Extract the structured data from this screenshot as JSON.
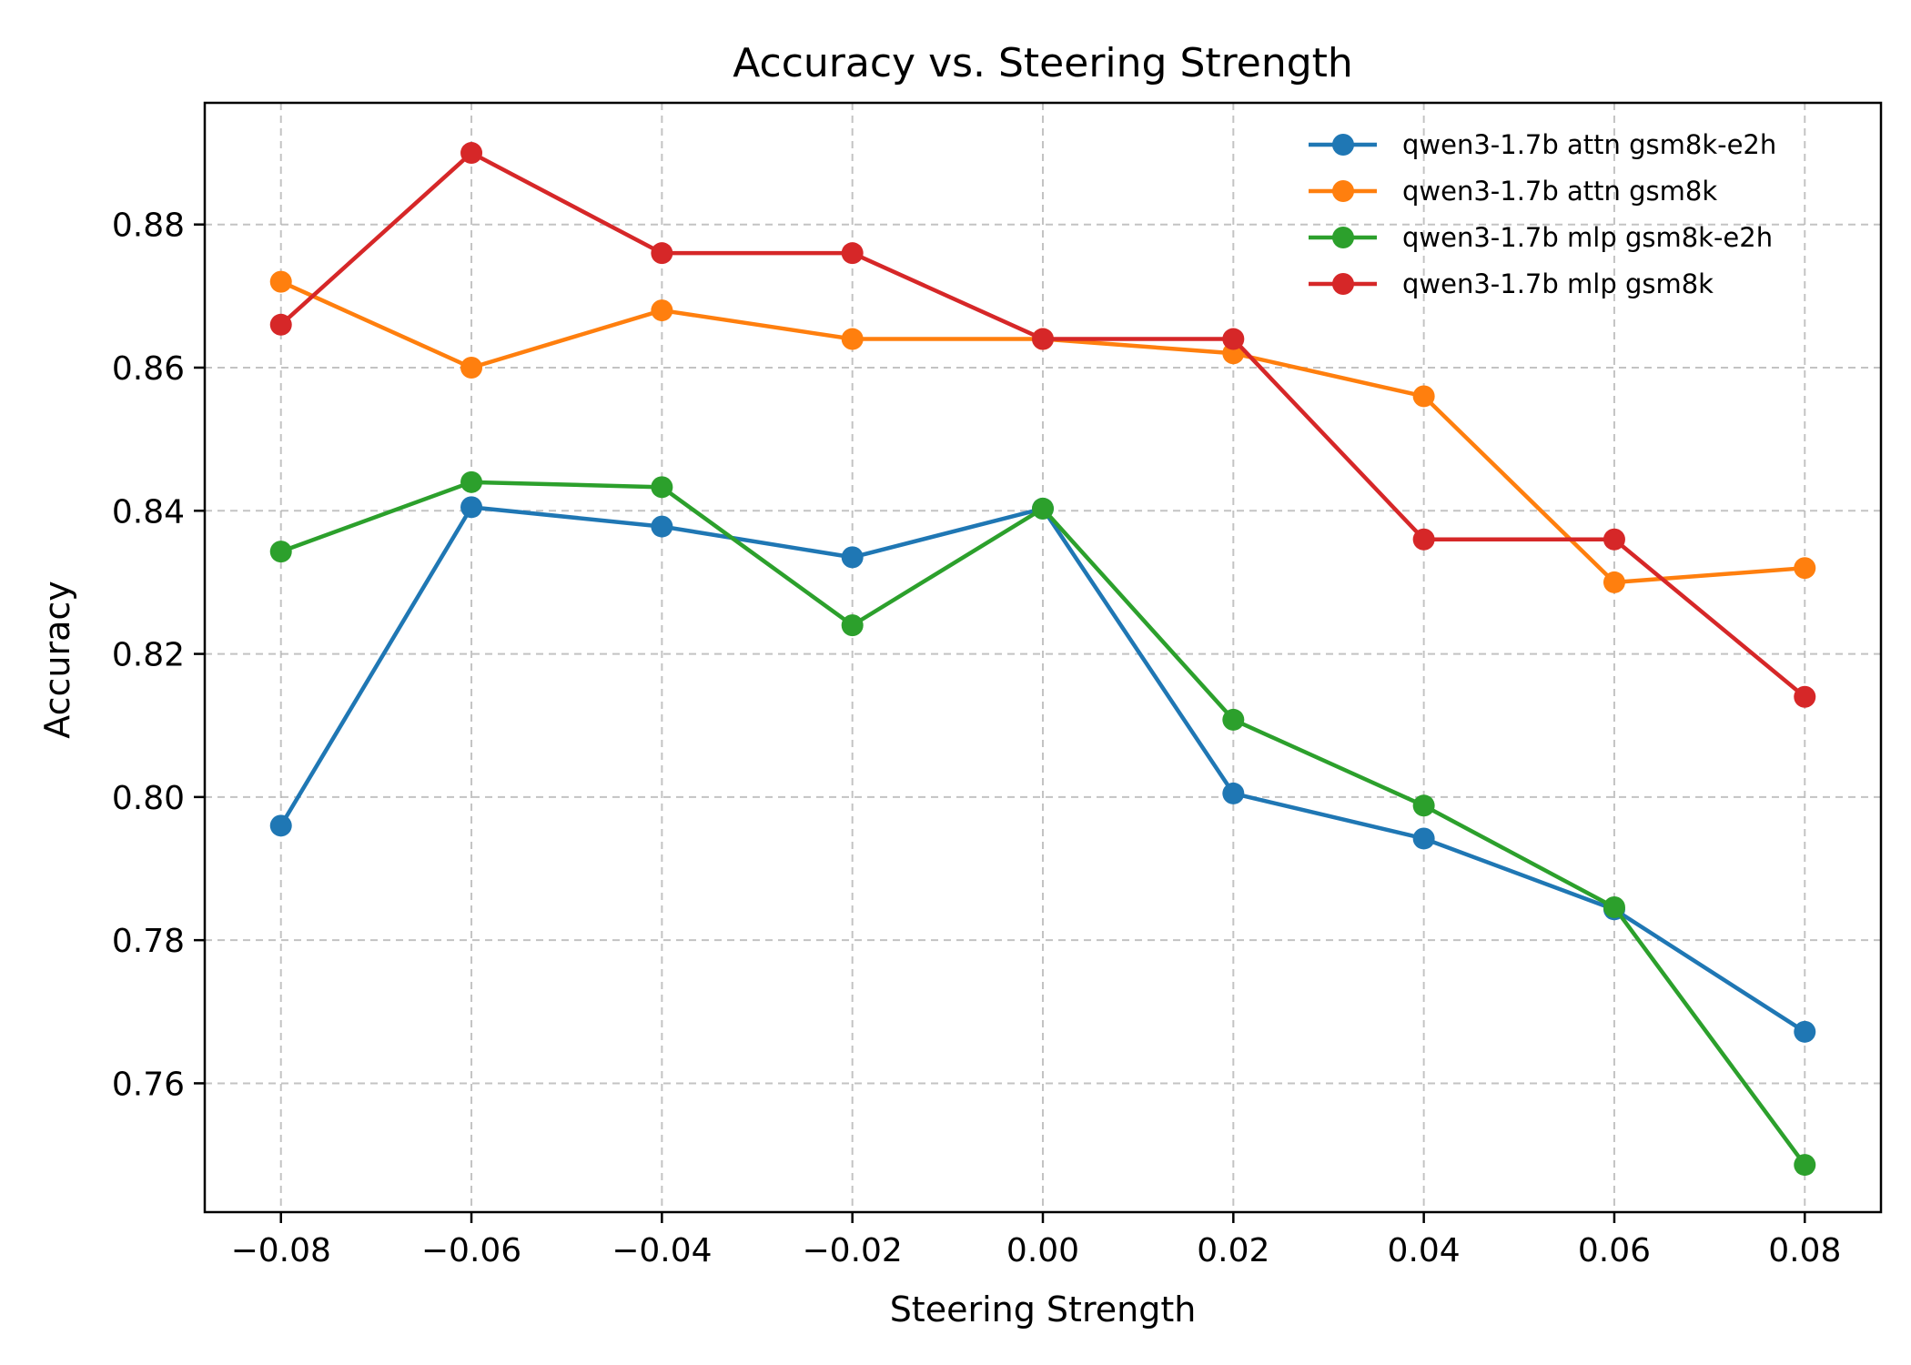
{
  "chart_data": {
    "type": "line",
    "title": "Accuracy vs. Steering Strength",
    "xlabel": "Steering Strength",
    "ylabel": "Accuracy",
    "x": [
      -0.08,
      -0.06,
      -0.04,
      -0.02,
      0.0,
      0.02,
      0.04,
      0.06,
      0.08
    ],
    "xticks": [
      -0.08,
      -0.06,
      -0.04,
      -0.02,
      0.0,
      0.02,
      0.04,
      0.06,
      0.08
    ],
    "xtick_labels": [
      "−0.08",
      "−0.06",
      "−0.04",
      "−0.02",
      "0.00",
      "0.02",
      "0.04",
      "0.06",
      "0.08"
    ],
    "yticks": [
      0.76,
      0.78,
      0.8,
      0.82,
      0.84,
      0.86,
      0.88
    ],
    "ytick_labels": [
      "0.76",
      "0.78",
      "0.80",
      "0.82",
      "0.84",
      "0.86",
      "0.88"
    ],
    "xlim": [
      -0.088,
      0.088
    ],
    "ylim": [
      0.742,
      0.897
    ],
    "grid": true,
    "legend_position": "top-right",
    "series": [
      {
        "name": "qwen3-1.7b attn gsm8k-e2h",
        "color": "#1f77b4",
        "values": [
          0.796,
          0.8405,
          0.8378,
          0.8335,
          0.8403,
          0.8005,
          0.7942,
          0.7843,
          0.7672
        ]
      },
      {
        "name": "qwen3-1.7b attn gsm8k",
        "color": "#ff7f0e",
        "values": [
          0.872,
          0.86,
          0.868,
          0.864,
          0.864,
          0.862,
          0.856,
          0.83,
          0.832
        ]
      },
      {
        "name": "qwen3-1.7b mlp gsm8k-e2h",
        "color": "#2ca02c",
        "values": [
          0.8343,
          0.844,
          0.8433,
          0.824,
          0.8403,
          0.8108,
          0.7988,
          0.7846,
          0.7486
        ]
      },
      {
        "name": "qwen3-1.7b mlp gsm8k",
        "color": "#d62728",
        "values": [
          0.866,
          0.89,
          0.876,
          0.876,
          0.864,
          0.864,
          0.836,
          0.836,
          0.814
        ]
      }
    ]
  }
}
